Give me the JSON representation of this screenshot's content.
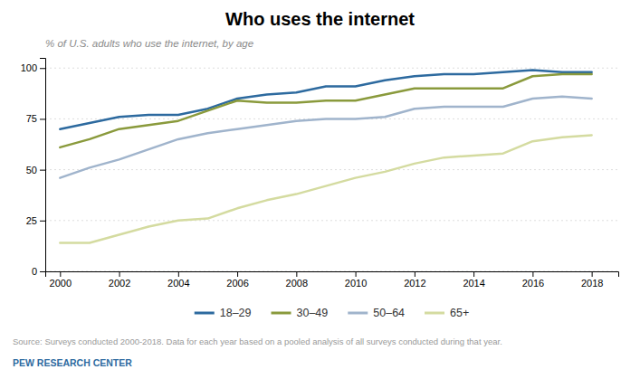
{
  "chart_data": {
    "type": "line",
    "title": "Who uses the internet",
    "subtitle": "% of U.S. adults who use the internet, by age",
    "source": "Source: Surveys conducted 2000-2018. Data for each year based on a pooled analysis of all surveys conducted during that year.",
    "footer": "PEW RESEARCH CENTER",
    "x": [
      2000,
      2001,
      2002,
      2003,
      2004,
      2005,
      2006,
      2007,
      2008,
      2009,
      2010,
      2011,
      2012,
      2013,
      2014,
      2015,
      2016,
      2017,
      2018
    ],
    "series": [
      {
        "name": "18–29",
        "color": "#2d6a9f",
        "values": [
          70,
          73,
          76,
          77,
          77,
          80,
          85,
          87,
          88,
          91,
          91,
          94,
          96,
          97,
          97,
          98,
          99,
          98,
          98
        ]
      },
      {
        "name": "30–49",
        "color": "#8a9a3c",
        "values": [
          61,
          65,
          70,
          72,
          74,
          79,
          84,
          83,
          83,
          84,
          84,
          87,
          90,
          90,
          90,
          90,
          96,
          97,
          97
        ]
      },
      {
        "name": "50–64",
        "color": "#a0b4cc",
        "values": [
          46,
          51,
          55,
          60,
          65,
          68,
          70,
          72,
          74,
          75,
          75,
          76,
          80,
          81,
          81,
          81,
          85,
          86,
          85
        ]
      },
      {
        "name": "65+",
        "color": "#d4dba0",
        "values": [
          14,
          14,
          18,
          22,
          25,
          26,
          31,
          35,
          38,
          42,
          46,
          49,
          53,
          56,
          57,
          58,
          64,
          66,
          67
        ]
      }
    ],
    "xlim": [
      1999.5,
      2018.9
    ],
    "xticks": [
      2000,
      2002,
      2004,
      2006,
      2008,
      2010,
      2012,
      2014,
      2016,
      2018
    ],
    "ylim": [
      0,
      105
    ],
    "yticks": [
      0,
      25,
      50,
      75,
      100
    ],
    "grid": true,
    "legend": "bottom"
  }
}
